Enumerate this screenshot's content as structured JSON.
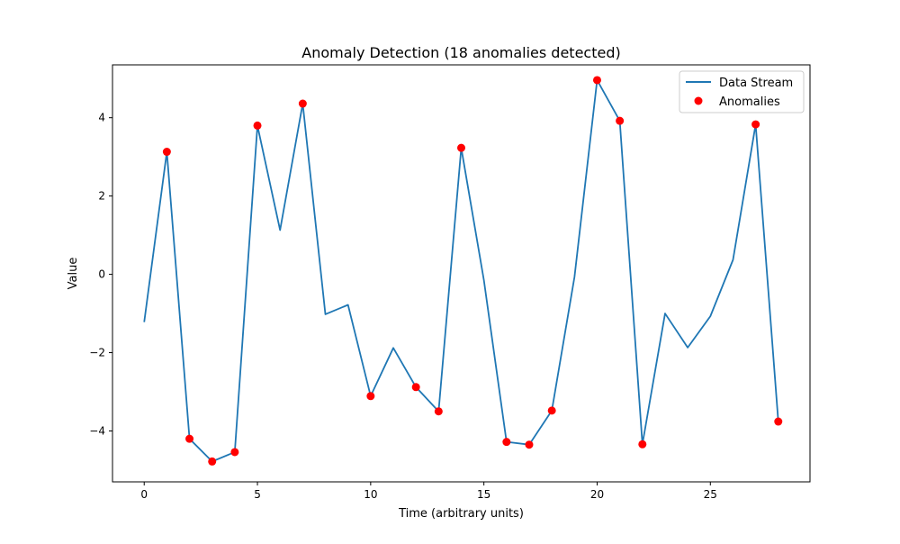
{
  "chart_data": {
    "type": "line",
    "title": "Anomaly Detection (18 anomalies detected)",
    "xlabel": "Time (arbitrary units)",
    "ylabel": "Value",
    "xlim": [
      -1.4,
      29.4
    ],
    "ylim": [
      -5.3,
      5.35
    ],
    "xticks": [
      0,
      5,
      10,
      15,
      20,
      25
    ],
    "xtick_labels": [
      "0",
      "5",
      "10",
      "15",
      "20",
      "25"
    ],
    "yticks": [
      -4,
      -2,
      0,
      2,
      4
    ],
    "ytick_labels": [
      "−4",
      "−2",
      "0",
      "2",
      "4"
    ],
    "grid": false,
    "legend_position": "upper right",
    "series": [
      {
        "name": "Data Stream",
        "kind": "line",
        "color": "#1f77b4",
        "x": [
          0,
          1,
          2,
          3,
          4,
          5,
          6,
          7,
          8,
          9,
          10,
          11,
          12,
          13,
          14,
          15,
          16,
          17,
          18,
          19,
          20,
          21,
          22,
          23,
          24,
          25,
          26,
          27,
          28
        ],
        "y": [
          -1.22,
          3.13,
          -4.2,
          -4.78,
          -4.54,
          3.8,
          1.13,
          4.36,
          -1.02,
          -0.78,
          -3.11,
          -1.88,
          -2.88,
          -3.5,
          3.23,
          -0.15,
          -4.28,
          -4.35,
          -3.48,
          -0.07,
          4.96,
          3.92,
          -4.34,
          -1.0,
          -1.87,
          -1.07,
          0.37,
          3.83,
          -3.76
        ]
      },
      {
        "name": "Anomalies",
        "kind": "scatter",
        "color": "#ff0000",
        "x": [
          1,
          2,
          3,
          4,
          5,
          7,
          10,
          12,
          13,
          14,
          16,
          17,
          18,
          20,
          21,
          22,
          27,
          28
        ],
        "y": [
          3.13,
          -4.2,
          -4.78,
          -4.54,
          3.8,
          4.36,
          -3.11,
          -2.88,
          -3.5,
          3.23,
          -4.28,
          -4.35,
          -3.48,
          4.96,
          3.92,
          -4.34,
          3.83,
          -3.76
        ]
      }
    ]
  }
}
